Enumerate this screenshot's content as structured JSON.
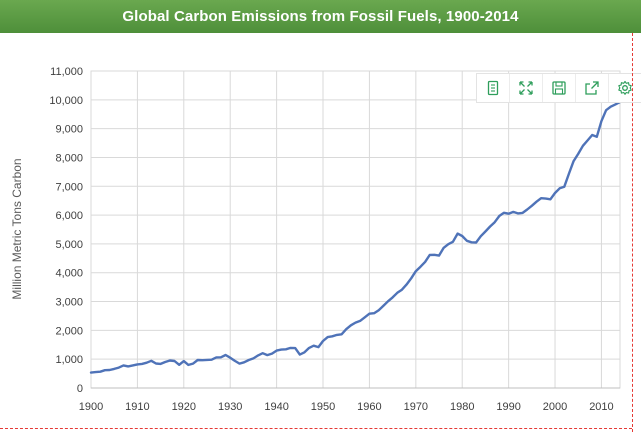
{
  "header": {
    "title": "Global Carbon Emissions from Fossil Fuels, 1900-2014"
  },
  "toolbar": {
    "icons": [
      "data-view-icon",
      "restore-icon",
      "save-image-icon",
      "share-icon",
      "settings-icon"
    ]
  },
  "colors": {
    "title_bar": "#5a9a45",
    "line": "#4f73b8",
    "icon": "#2e9e5b",
    "frame": "#e53935"
  },
  "chart_data": {
    "type": "line",
    "title": "Global Carbon Emissions from Fossil Fuels, 1900-2014",
    "xlabel": "",
    "ylabel": "Million Metric Tons Carbon",
    "xlim": [
      1900,
      2014
    ],
    "ylim": [
      0,
      11000
    ],
    "grid": true,
    "x_ticks": [
      "1900",
      "1910",
      "1920",
      "1930",
      "1940",
      "1950",
      "1960",
      "1970",
      "1980",
      "1990",
      "2000",
      "2010"
    ],
    "y_ticks": [
      "0",
      "1,000",
      "2,000",
      "3,000",
      "4,000",
      "5,000",
      "6,000",
      "7,000",
      "8,000",
      "9,000",
      "10,000",
      "11,000"
    ],
    "series": [
      {
        "x": [
          1900,
          1901,
          1902,
          1903,
          1904,
          1905,
          1906,
          1907,
          1908,
          1909,
          1910,
          1911,
          1912,
          1913,
          1914,
          1915,
          1916,
          1917,
          1918,
          1919,
          1920,
          1921,
          1922,
          1923,
          1924,
          1925,
          1926,
          1927,
          1928,
          1929,
          1930,
          1931,
          1932,
          1933,
          1934,
          1935,
          1936,
          1937,
          1938,
          1939,
          1940,
          1941,
          1942,
          1943,
          1944,
          1945,
          1946,
          1947,
          1948,
          1949,
          1950,
          1951,
          1952,
          1953,
          1954,
          1955,
          1956,
          1957,
          1958,
          1959,
          1960,
          1961,
          1962,
          1963,
          1964,
          1965,
          1966,
          1967,
          1968,
          1969,
          1970,
          1971,
          1972,
          1973,
          1974,
          1975,
          1976,
          1977,
          1978,
          1979,
          1980,
          1981,
          1982,
          1983,
          1984,
          1985,
          1986,
          1987,
          1988,
          1989,
          1990,
          1991,
          1992,
          1993,
          1994,
          1995,
          1996,
          1997,
          1998,
          1999,
          2000,
          2001,
          2002,
          2003,
          2004,
          2005,
          2006,
          2007,
          2008,
          2009,
          2010,
          2011,
          2012,
          2013,
          2014
        ],
        "values": [
          534,
          552,
          566,
          617,
          624,
          663,
          707,
          784,
          750,
          785,
          819,
          836,
          879,
          943,
          850,
          838,
          901,
          955,
          936,
          806,
          932,
          803,
          845,
          970,
          963,
          975,
          983,
          1062,
          1065,
          1145,
          1053,
          940,
          847,
          893,
          973,
          1027,
          1130,
          1209,
          1142,
          1192,
          1299,
          1334,
          1342,
          1391,
          1383,
          1160,
          1238,
          1392,
          1469,
          1419,
          1630,
          1767,
          1795,
          1841,
          1865,
          2042,
          2177,
          2270,
          2330,
          2454,
          2577,
          2594,
          2700,
          2848,
          3008,
          3145,
          3305,
          3411,
          3587,
          3806,
          4053,
          4208,
          4376,
          4614,
          4623,
          4596,
          4864,
          4989,
          5074,
          5357,
          5275,
          5107,
          5057,
          5049,
          5266,
          5431,
          5604,
          5755,
          5971,
          6080,
          6049,
          6112,
          6058,
          6076,
          6194,
          6321,
          6464,
          6587,
          6571,
          6548,
          6767,
          6931,
          6985,
          7442,
          7872,
          8123,
          8405,
          8590,
          8780,
          8716,
          9258,
          9640,
          9760,
          9840,
          9920
        ]
      }
    ]
  }
}
